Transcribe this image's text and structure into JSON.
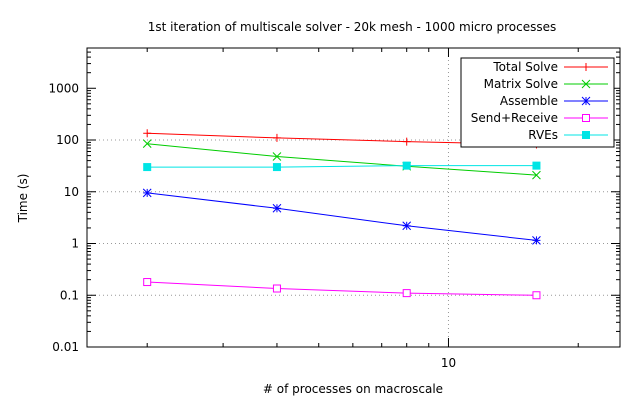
{
  "chart_data": {
    "type": "line",
    "title": "1st iteration of multiscale solver - 20k mesh - 1000 micro processes",
    "xlabel": "# of processes on macroscale",
    "ylabel": "Time (s)",
    "xscale": "log",
    "yscale": "log",
    "xlim": [
      1.45,
      25
    ],
    "ylim": [
      0.01,
      6000
    ],
    "x_tick_labels": [
      {
        "value": 10,
        "label": "10"
      }
    ],
    "y_tick_labels": [
      {
        "value": 1000,
        "label": "1000"
      },
      {
        "value": 100,
        "label": "100"
      },
      {
        "value": 10,
        "label": "10"
      },
      {
        "value": 1,
        "label": "1"
      },
      {
        "value": 0.1,
        "label": "0.1"
      },
      {
        "value": 0.01,
        "label": "0.01"
      }
    ],
    "grid": true,
    "legend_position": "top-right",
    "x": [
      2,
      4,
      8,
      16
    ],
    "series": [
      {
        "name": "Total Solve",
        "color": "#ff0000",
        "marker": "plus",
        "values": [
          135,
          110,
          93,
          82
        ]
      },
      {
        "name": "Matrix Solve",
        "color": "#00cc00",
        "marker": "x",
        "values": [
          85,
          48,
          31,
          21
        ]
      },
      {
        "name": "Assemble",
        "color": "#0000ff",
        "marker": "star",
        "values": [
          9.5,
          4.8,
          2.2,
          1.15
        ]
      },
      {
        "name": "Send+Receive",
        "color": "#ff00ff",
        "marker": "open-square",
        "values": [
          0.18,
          0.135,
          0.11,
          0.1
        ]
      },
      {
        "name": "RVEs",
        "color": "#00e5e5",
        "marker": "filled-square",
        "values": [
          30,
          30,
          32,
          32
        ]
      }
    ]
  }
}
